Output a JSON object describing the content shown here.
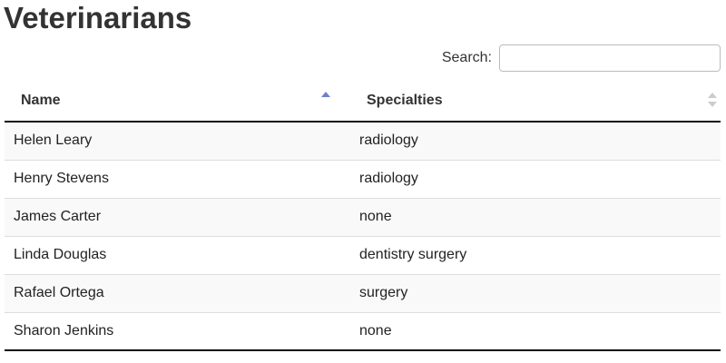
{
  "page": {
    "title": "Veterinarians"
  },
  "search": {
    "label": "Search:",
    "value": "",
    "placeholder": ""
  },
  "table": {
    "columns": [
      {
        "label": "Name",
        "sort": "ascending"
      },
      {
        "label": "Specialties",
        "sort": "none"
      }
    ],
    "rows": [
      {
        "name": "Helen Leary",
        "specialties": "radiology"
      },
      {
        "name": "Henry Stevens",
        "specialties": "radiology"
      },
      {
        "name": "James Carter",
        "specialties": "none"
      },
      {
        "name": "Linda Douglas",
        "specialties": "dentistry surgery"
      },
      {
        "name": "Rafael Ortega",
        "specialties": "surgery"
      },
      {
        "name": "Sharon Jenkins",
        "specialties": "none"
      }
    ]
  },
  "colors": {
    "sort_active": "#6f7fcf",
    "sort_inactive": "#cccccc",
    "stripe": "#f9f9f9"
  }
}
